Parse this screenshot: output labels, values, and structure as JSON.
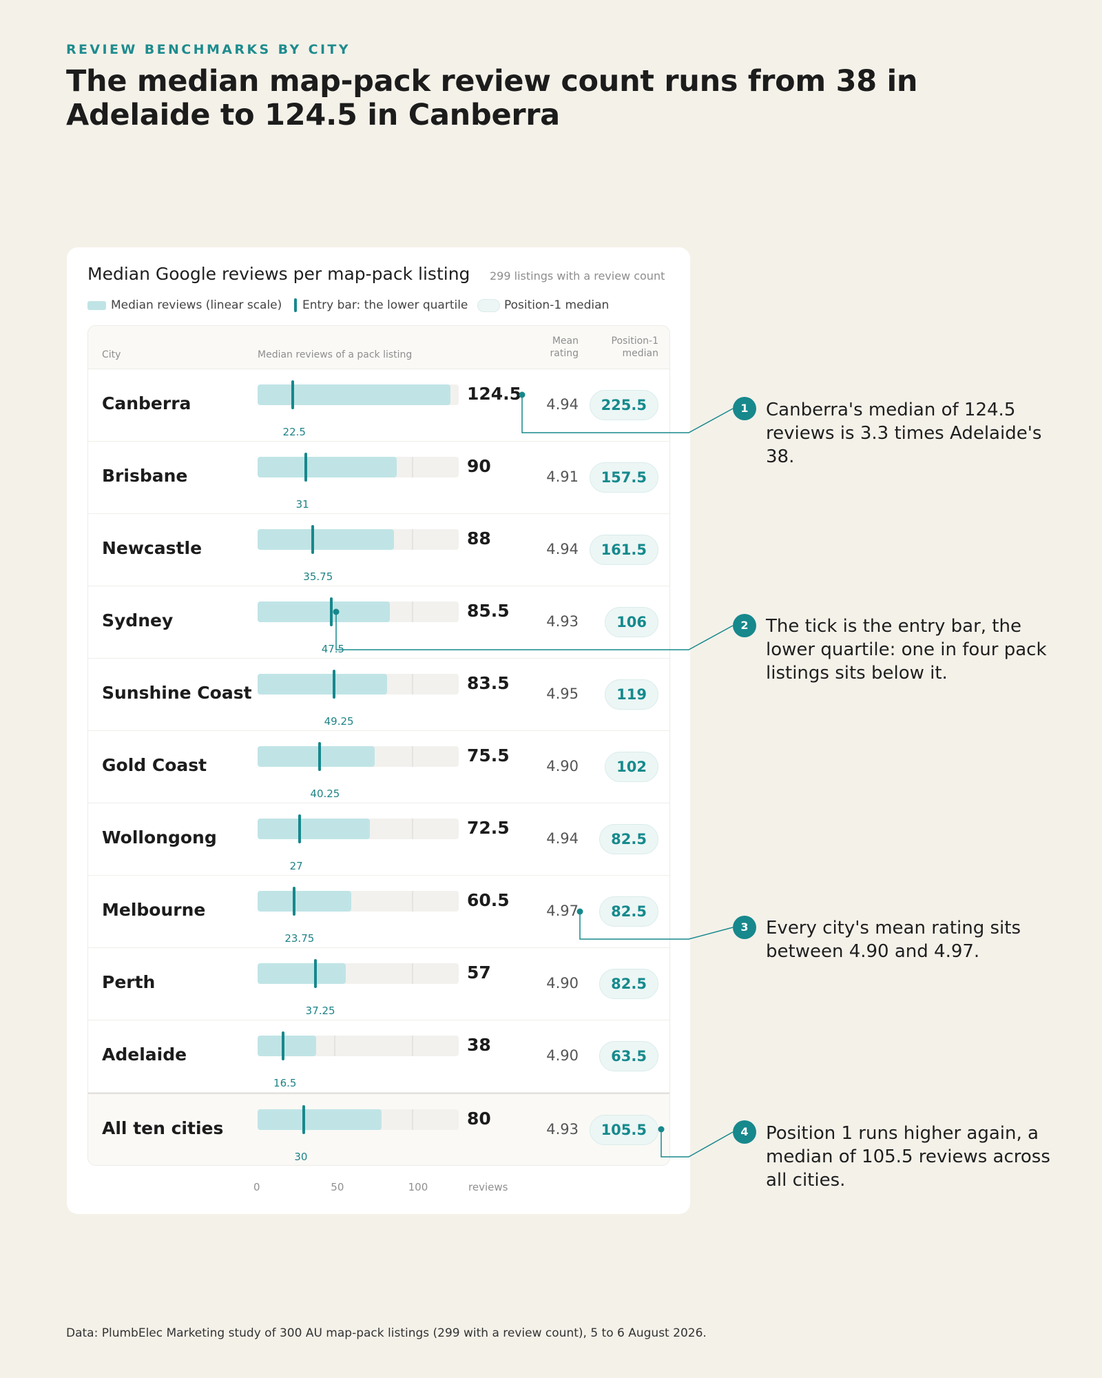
{
  "eyebrow": "REVIEW BENCHMARKS BY CITY",
  "headline": "The median map-pack review count runs from 38 in Adelaide to 124.5 in Canberra",
  "card": {
    "title": "Median Google reviews per map-pack listing",
    "note": "299 listings with a review count",
    "legend": {
      "median": "Median reviews (linear scale)",
      "entry": "Entry bar: the lower quartile",
      "position1": "Position-1 median"
    },
    "headers": {
      "city": "City",
      "bar": "Median reviews of a pack listing",
      "rating_line1": "Mean",
      "rating_line2": "rating",
      "pos1_line1": "Position-1",
      "pos1_line2": "median"
    },
    "axis_unit": "reviews"
  },
  "chart_data": {
    "type": "bar",
    "x_axis": {
      "min": 0,
      "max": 130,
      "ticks": [
        0,
        50,
        100
      ],
      "unit": "reviews"
    },
    "grid": true,
    "rows": [
      {
        "city": "Canberra",
        "median": 124.5,
        "lower_quartile": 22.5,
        "mean_rating": "4.94",
        "position1_median": 225.5
      },
      {
        "city": "Brisbane",
        "median": 90,
        "lower_quartile": 31,
        "mean_rating": "4.91",
        "position1_median": 157.5
      },
      {
        "city": "Newcastle",
        "median": 88,
        "lower_quartile": 35.75,
        "mean_rating": "4.94",
        "position1_median": 161.5
      },
      {
        "city": "Sydney",
        "median": 85.5,
        "lower_quartile": 47.5,
        "mean_rating": "4.93",
        "position1_median": 106
      },
      {
        "city": "Sunshine Coast",
        "median": 83.5,
        "lower_quartile": 49.25,
        "mean_rating": "4.95",
        "position1_median": 119
      },
      {
        "city": "Gold Coast",
        "median": 75.5,
        "lower_quartile": 40.25,
        "mean_rating": "4.90",
        "position1_median": 102
      },
      {
        "city": "Wollongong",
        "median": 72.5,
        "lower_quartile": 27,
        "mean_rating": "4.94",
        "position1_median": 82.5
      },
      {
        "city": "Melbourne",
        "median": 60.5,
        "lower_quartile": 23.75,
        "mean_rating": "4.97",
        "position1_median": 82.5
      },
      {
        "city": "Perth",
        "median": 57,
        "lower_quartile": 37.25,
        "mean_rating": "4.90",
        "position1_median": 82.5
      },
      {
        "city": "Adelaide",
        "median": 38,
        "lower_quartile": 16.5,
        "mean_rating": "4.90",
        "position1_median": 63.5
      },
      {
        "city": "All ten cities",
        "median": 80,
        "lower_quartile": 30,
        "mean_rating": "4.93",
        "position1_median": 105.5,
        "total": true
      }
    ]
  },
  "callouts": [
    {
      "badge": "1",
      "text": "Canberra's median of 124.5 reviews is 3.3 times Adelaide's 38."
    },
    {
      "badge": "2",
      "text": "The tick is the entry bar, the lower quartile: one in four pack listings sits below it."
    },
    {
      "badge": "3",
      "text": "Every city's mean rating sits between 4.90 and 4.97."
    },
    {
      "badge": "4",
      "text": "Position 1 runs higher again, a median of 105.5 reviews across all cities."
    }
  ],
  "colors": {
    "accent": "#17888c",
    "bar_fill": "#c0e4e6",
    "track": "#f2f1ee",
    "background": "#f4f1e9"
  },
  "footnote": "Data: PlumbElec Marketing study of 300 AU map-pack listings (299 with a review count), 5 to 6 August 2026."
}
